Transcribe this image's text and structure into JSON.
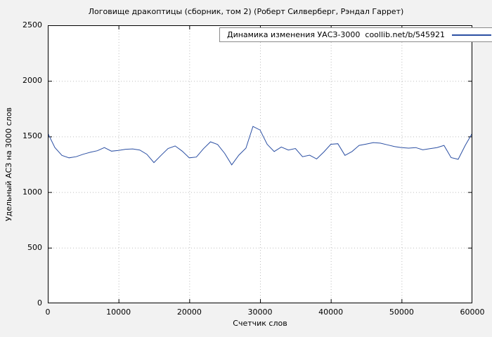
{
  "page": {
    "background": "#f2f2f2",
    "plot_background": "#ffffff",
    "grid_color": "#bdbdbd",
    "axis_color": "#000000"
  },
  "chart_data": {
    "type": "line",
    "title": "Логовище дракоптицы (сборник, том 2) (Роберт Силверберг, Рэндал Гаррет)",
    "legend_label": "Динамика изменения УАСЗ-3000  coollib.net/b/545921",
    "xlabel": "Счетчик слов",
    "ylabel": "Удельный АСЗ на 3000 слов",
    "xlim": [
      0,
      60000
    ],
    "ylim": [
      0,
      2500
    ],
    "xticks": [
      0,
      10000,
      20000,
      30000,
      40000,
      50000,
      60000
    ],
    "yticks": [
      0,
      500,
      1000,
      1500,
      2000,
      2500
    ],
    "grid": true,
    "legend_position": "top-center",
    "line_color": "#2b4fa3",
    "x": [
      0,
      1000,
      2000,
      3000,
      4000,
      5000,
      6000,
      7000,
      8000,
      9000,
      10000,
      11000,
      12000,
      13000,
      14000,
      15000,
      16000,
      17000,
      18000,
      19000,
      20000,
      21000,
      22000,
      23000,
      24000,
      25000,
      26000,
      27000,
      28000,
      29000,
      30000,
      31000,
      32000,
      33000,
      34000,
      35000,
      36000,
      37000,
      38000,
      39000,
      40000,
      41000,
      42000,
      43000,
      44000,
      45000,
      46000,
      47000,
      48000,
      49000,
      50000,
      51000,
      52000,
      53000,
      54000,
      55000,
      56000,
      57000,
      58000,
      59000,
      60000
    ],
    "values": [
      1530,
      1400,
      1330,
      1308,
      1318,
      1340,
      1358,
      1372,
      1400,
      1368,
      1375,
      1385,
      1388,
      1378,
      1340,
      1265,
      1330,
      1392,
      1415,
      1368,
      1308,
      1315,
      1390,
      1452,
      1428,
      1348,
      1245,
      1332,
      1395,
      1590,
      1558,
      1430,
      1365,
      1405,
      1378,
      1392,
      1318,
      1332,
      1298,
      1360,
      1430,
      1435,
      1330,
      1365,
      1420,
      1432,
      1445,
      1440,
      1425,
      1410,
      1400,
      1395,
      1400,
      1380,
      1390,
      1400,
      1420,
      1310,
      1295,
      1420,
      1530
    ]
  }
}
